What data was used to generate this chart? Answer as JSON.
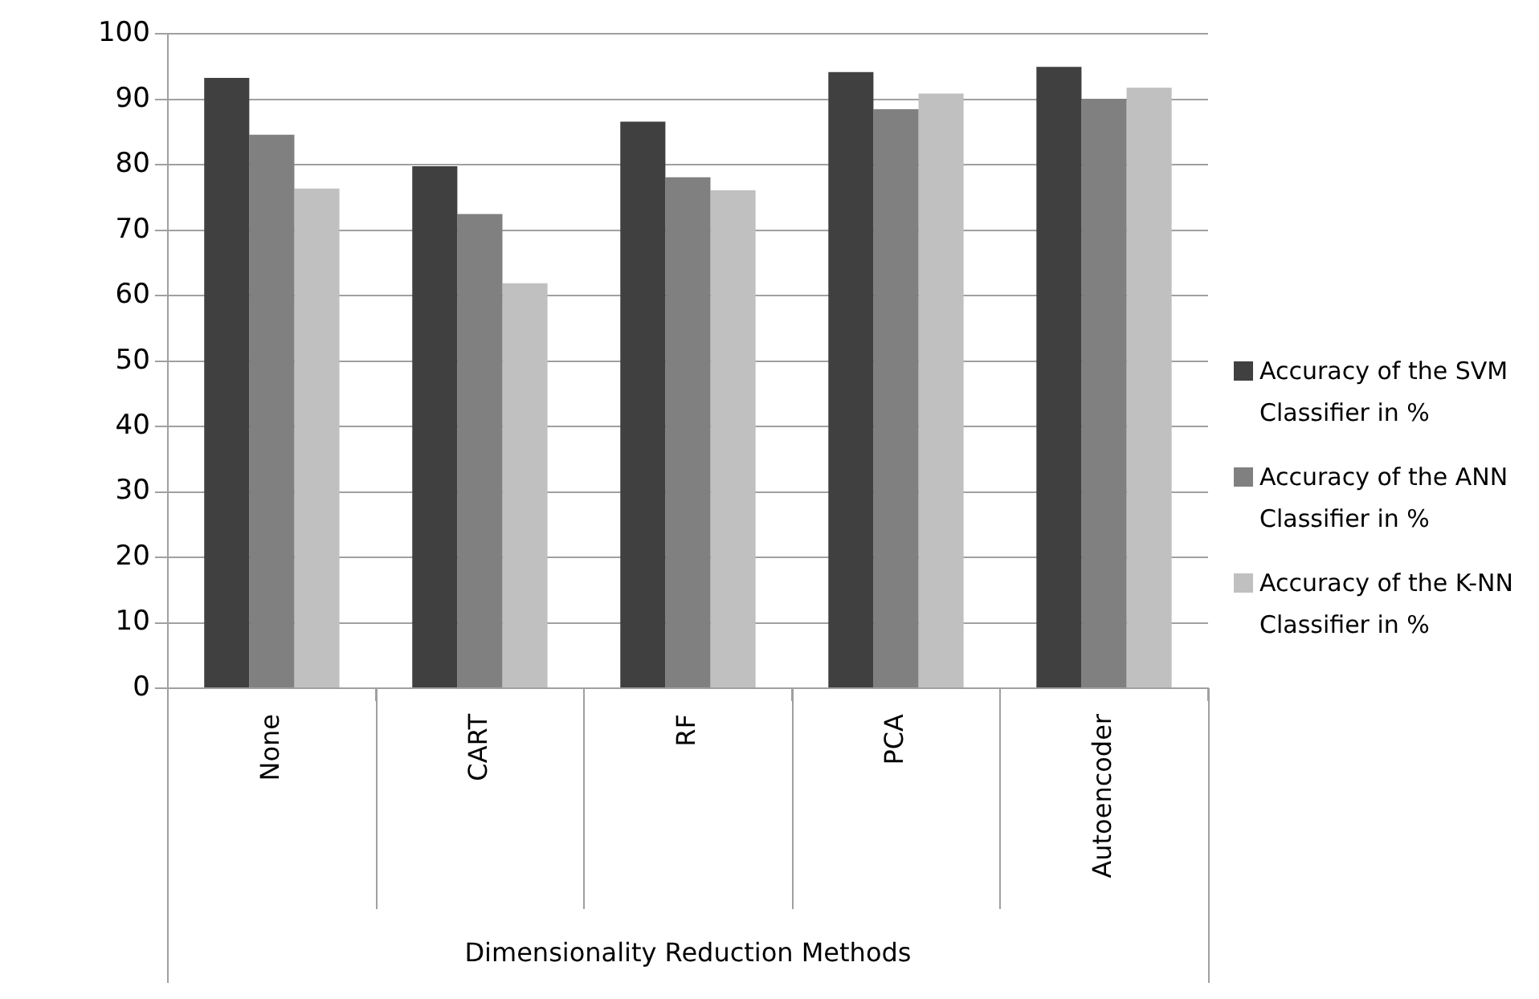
{
  "chart_data": {
    "type": "bar",
    "xlabel": "Dimensionality Reduction Methods",
    "categories": [
      "None",
      "CART",
      "RF",
      "PCA",
      "Autoencoder"
    ],
    "series": [
      {
        "name": "Accuracy of the SVM Classifier in %",
        "color": "#404040",
        "values": [
          93.3,
          79.8,
          86.6,
          94.2,
          95.0
        ]
      },
      {
        "name": "Accuracy of the ANN Classifier in %",
        "color": "#808080",
        "values": [
          84.6,
          72.5,
          78.1,
          88.5,
          90.1
        ]
      },
      {
        "name": "Accuracy of the K-NN Classifier in %",
        "color": "#c0c0c0",
        "values": [
          76.4,
          61.9,
          76.1,
          90.9,
          91.8
        ]
      }
    ],
    "ylim": [
      0,
      100
    ],
    "yticks": [
      0,
      10,
      20,
      30,
      40,
      50,
      60,
      70,
      80,
      90,
      100
    ],
    "grid": "y",
    "legend": "right"
  }
}
